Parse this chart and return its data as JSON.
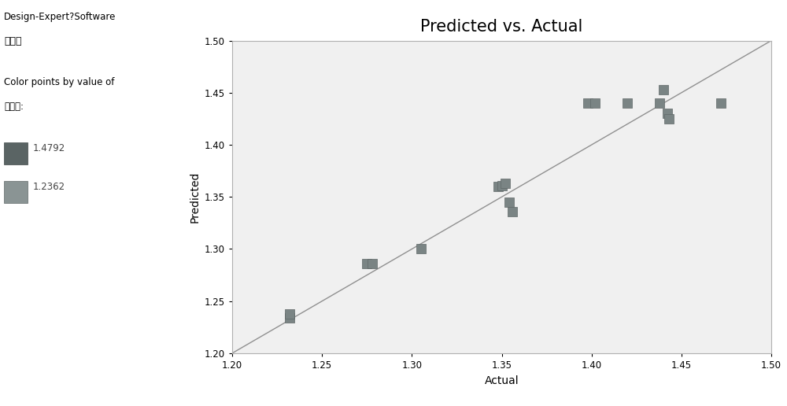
{
  "title": "Predicted vs. Actual",
  "xlabel": "Actual",
  "ylabel": "Predicted",
  "xlim": [
    1.2,
    1.5
  ],
  "ylim": [
    1.2,
    1.5
  ],
  "xticks": [
    1.2,
    1.25,
    1.3,
    1.35,
    1.4,
    1.45,
    1.5
  ],
  "yticks": [
    1.2,
    1.25,
    1.3,
    1.35,
    1.4,
    1.45,
    1.5
  ],
  "points": [
    [
      1.232,
      1.234
    ],
    [
      1.232,
      1.238
    ],
    [
      1.275,
      1.286
    ],
    [
      1.278,
      1.286
    ],
    [
      1.305,
      1.3
    ],
    [
      1.348,
      1.36
    ],
    [
      1.35,
      1.361
    ],
    [
      1.352,
      1.363
    ],
    [
      1.354,
      1.345
    ],
    [
      1.356,
      1.336
    ],
    [
      1.398,
      1.44
    ],
    [
      1.402,
      1.44
    ],
    [
      1.42,
      1.44
    ],
    [
      1.438,
      1.44
    ],
    [
      1.44,
      1.453
    ],
    [
      1.442,
      1.43
    ],
    [
      1.443,
      1.425
    ],
    [
      1.472,
      1.44
    ]
  ],
  "line_color": "#909090",
  "point_color": "#7a8484",
  "point_edge_color": "#606868",
  "background_color": "#ffffff",
  "plot_bg_color": "#f0f0f0",
  "legend_color_high": "#5a6464",
  "legend_color_low": "#8a9494",
  "legend_high_val": "1.4792",
  "legend_low_val": "1.2362",
  "sidebar_title1": "Design-Expert?Software",
  "sidebar_title2": "吸光度",
  "sidebar_subtitle": "Color points by value of",
  "sidebar_subtitle2": "吸光度:",
  "title_fontsize": 15,
  "axis_label_fontsize": 10,
  "tick_fontsize": 8.5,
  "sidebar_fontsize": 8.5
}
